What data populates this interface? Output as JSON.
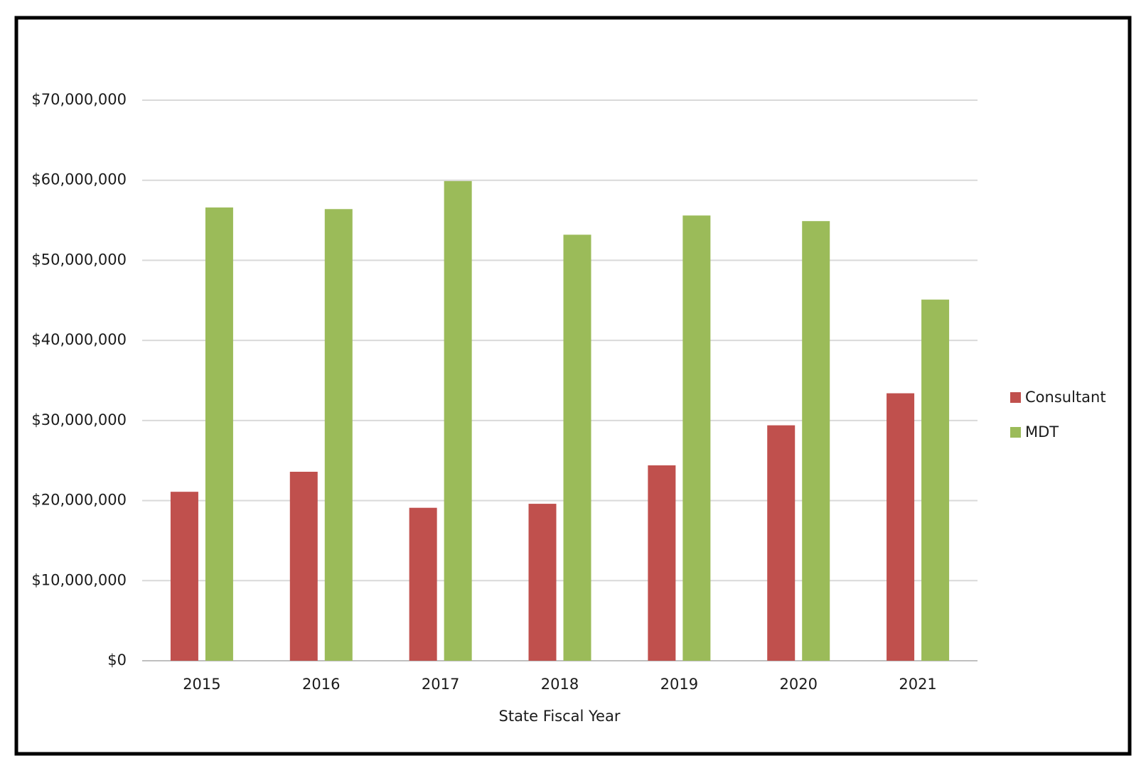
{
  "chart_data": {
    "type": "bar",
    "categories": [
      "2015",
      "2016",
      "2017",
      "2018",
      "2019",
      "2020",
      "2021"
    ],
    "x_label": "State Fiscal Year",
    "series": [
      {
        "name": "Consultant",
        "color": "#c0504d",
        "values": [
          21100000,
          23600000,
          19100000,
          19600000,
          24400000,
          29400000,
          33400000
        ]
      },
      {
        "name": "MDT",
        "color": "#9bbb59",
        "values": [
          56600000,
          56400000,
          59900000,
          53200000,
          55600000,
          54900000,
          45100000
        ]
      }
    ],
    "ylim": [
      0,
      70000000
    ],
    "yticks": [
      {
        "value": 0,
        "label": "$0"
      },
      {
        "value": 10000000,
        "label": "$10,000,000"
      },
      {
        "value": 20000000,
        "label": "$20,000,000"
      },
      {
        "value": 30000000,
        "label": "$30,000,000"
      },
      {
        "value": 40000000,
        "label": "$40,000,000"
      },
      {
        "value": 50000000,
        "label": "$50,000,000"
      },
      {
        "value": 60000000,
        "label": "$60,000,000"
      },
      {
        "value": 70000000,
        "label": "$70,000,000"
      }
    ],
    "grid": true,
    "legend": "right"
  }
}
